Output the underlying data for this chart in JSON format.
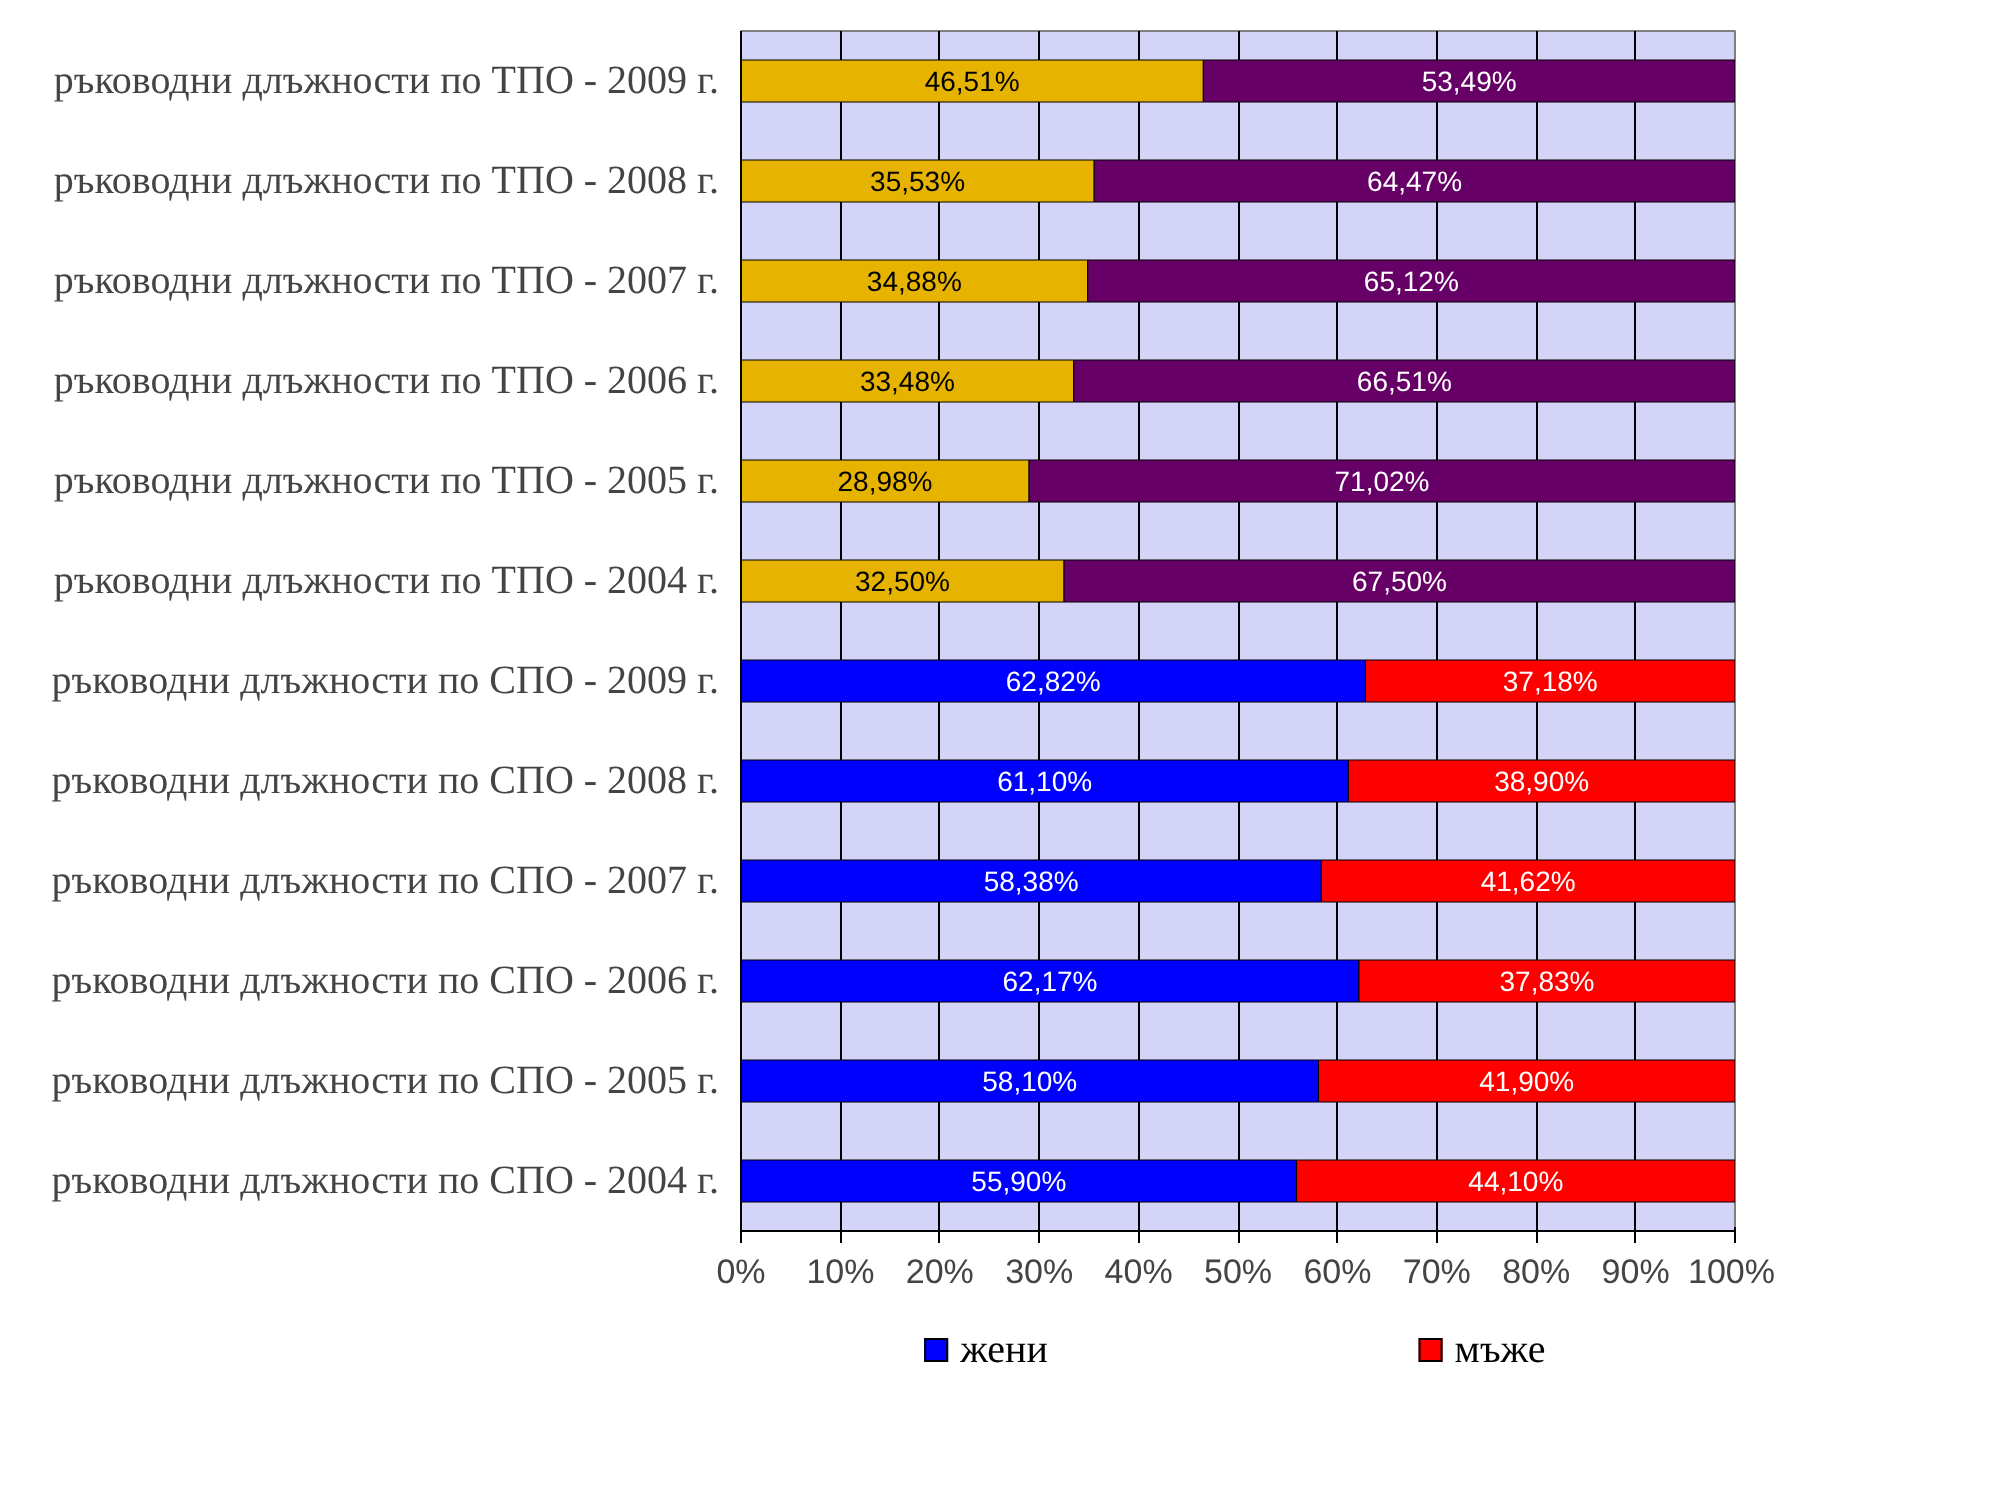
{
  "chart_data": {
    "type": "bar",
    "orientation": "horizontal",
    "stacked": true,
    "categories": [
      "ръководни длъжности по ТПО - 2009 г.",
      "ръководни длъжности по ТПО - 2008 г.",
      "ръководни длъжности по ТПО - 2007 г.",
      "ръководни длъжности по ТПО - 2006 г.",
      "ръководни длъжности по ТПО - 2005 г.",
      "ръководни длъжности по ТПО - 2004 г.",
      "ръководни длъжности по СПО - 2009 г.",
      "ръководни длъжности по СПО - 2008 г.",
      "ръководни длъжности по СПО - 2007 г.",
      "ръководни длъжности по СПО - 2006 г.",
      "ръководни длъжности по СПО - 2005 г.",
      "ръководни длъжности по СПО - 2004 г."
    ],
    "series": [
      {
        "name": "жени",
        "colors": [
          "#e6b400",
          "#e6b400",
          "#e6b400",
          "#e6b400",
          "#e6b400",
          "#e6b400",
          "#0000ff",
          "#0000ff",
          "#0000ff",
          "#0000ff",
          "#0000ff",
          "#0000ff"
        ],
        "values": [
          46.51,
          35.53,
          34.88,
          33.48,
          28.98,
          32.5,
          62.82,
          61.1,
          58.38,
          62.17,
          58.1,
          55.9
        ],
        "value_labels": [
          "46,51%",
          "35,53%",
          "34,88%",
          "33,48%",
          "28,98%",
          "32,50%",
          "62,82%",
          "61,10%",
          "58,38%",
          "62,17%",
          "58,10%",
          "55,90%"
        ]
      },
      {
        "name": "мъже",
        "colors": [
          "#660066",
          "#660066",
          "#660066",
          "#660066",
          "#660066",
          "#660066",
          "#ff0000",
          "#ff0000",
          "#ff0000",
          "#ff0000",
          "#ff0000",
          "#ff0000"
        ],
        "values": [
          53.49,
          64.47,
          65.12,
          66.51,
          71.02,
          67.5,
          37.18,
          38.9,
          41.62,
          37.83,
          41.9,
          44.1
        ],
        "value_labels": [
          "53,49%",
          "64,47%",
          "65,12%",
          "66,51%",
          "71,02%",
          "67,50%",
          "37,18%",
          "38,90%",
          "41,62%",
          "37,83%",
          "41,90%",
          "44,10%"
        ]
      }
    ],
    "xlim": [
      0,
      100
    ],
    "xticks": [
      {
        "value": 0,
        "label": "0%"
      },
      {
        "value": 10,
        "label": "10%"
      },
      {
        "value": 20,
        "label": "20%"
      },
      {
        "value": 30,
        "label": "30%"
      },
      {
        "value": 40,
        "label": "40%"
      },
      {
        "value": 50,
        "label": "50%"
      },
      {
        "value": 60,
        "label": "60%"
      },
      {
        "value": 70,
        "label": "70%"
      },
      {
        "value": 80,
        "label": "80%"
      },
      {
        "value": 90,
        "label": "90%"
      },
      {
        "value": 100,
        "label": "100%"
      }
    ],
    "grid": "x",
    "legend": "bottom"
  }
}
